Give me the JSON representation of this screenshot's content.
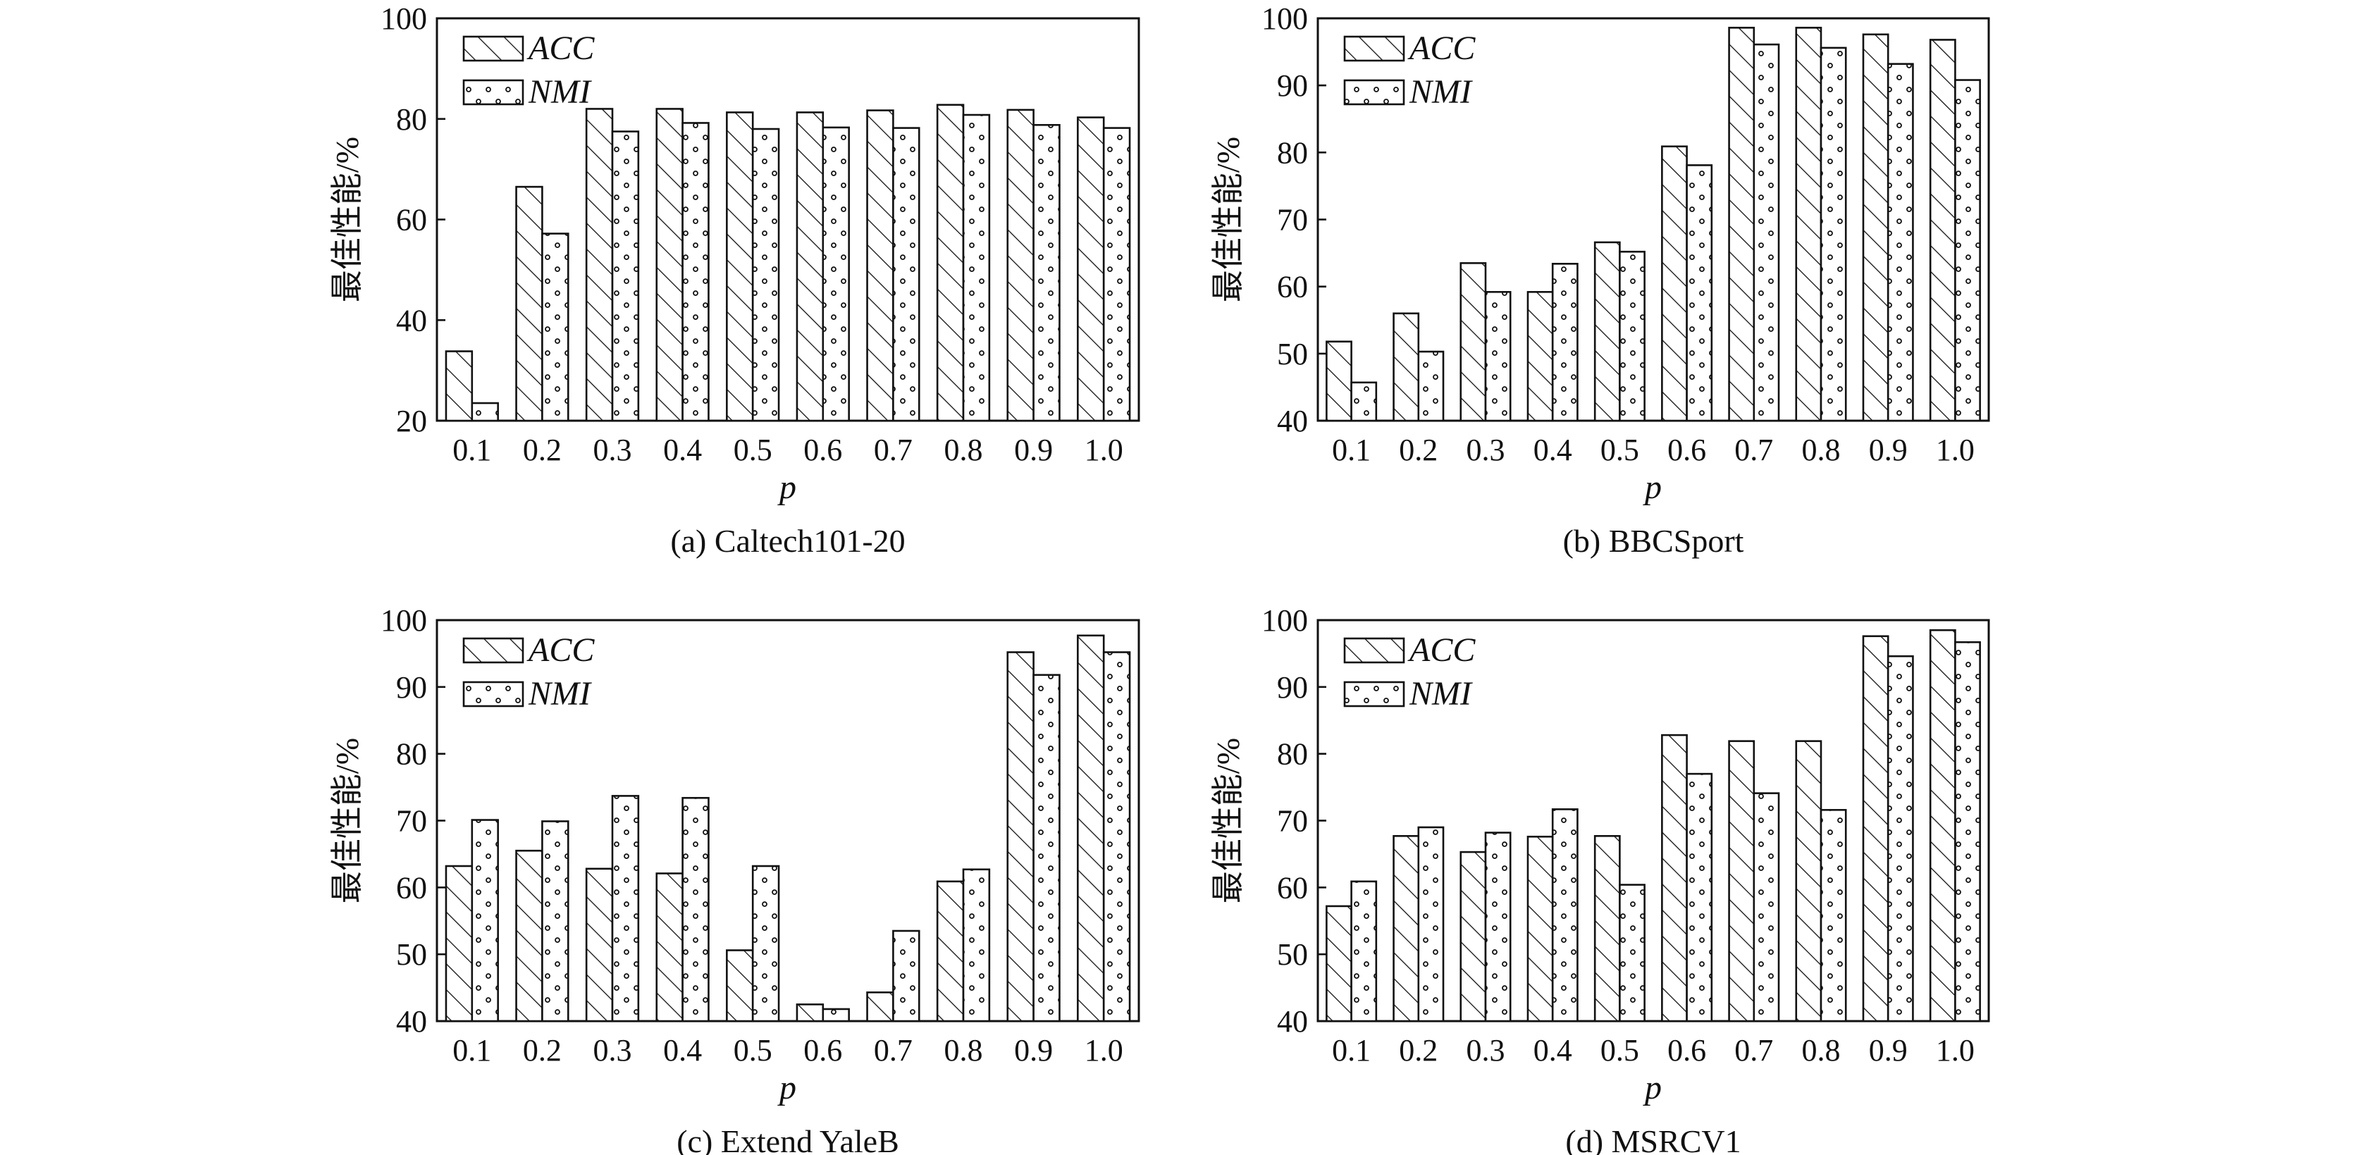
{
  "chart_data": [
    {
      "type": "bar",
      "caption": "(a)  Caltech101-20",
      "categories": [
        "0.1",
        "0.2",
        "0.3",
        "0.4",
        "0.5",
        "0.6",
        "0.7",
        "0.8",
        "0.9",
        "1.0"
      ],
      "series": [
        {
          "name": "ACC",
          "values": [
            33.8,
            66.5,
            82.0,
            82.0,
            81.3,
            81.3,
            81.7,
            82.8,
            81.8,
            80.3
          ]
        },
        {
          "name": "NMI",
          "values": [
            23.5,
            57.2,
            77.5,
            79.2,
            78.0,
            78.3,
            78.2,
            80.8,
            78.8,
            78.2
          ]
        }
      ],
      "xlabel": "p",
      "ylabel": "最佳性能/%",
      "ylim": [
        20,
        100
      ],
      "yticks": [
        "20",
        "40",
        "60",
        "80",
        "100"
      ]
    },
    {
      "type": "bar",
      "caption": "(b)  BBCSport",
      "categories": [
        "0.1",
        "0.2",
        "0.3",
        "0.4",
        "0.5",
        "0.6",
        "0.7",
        "0.8",
        "0.9",
        "1.0"
      ],
      "series": [
        {
          "name": "ACC",
          "values": [
            51.8,
            56.0,
            63.5,
            59.2,
            66.6,
            80.9,
            98.6,
            98.6,
            97.6,
            96.8
          ]
        },
        {
          "name": "NMI",
          "values": [
            45.7,
            50.3,
            59.2,
            63.4,
            65.2,
            78.1,
            96.1,
            95.6,
            93.2,
            90.8
          ]
        }
      ],
      "xlabel": "p",
      "ylabel": "最佳性能/%",
      "ylim": [
        40,
        100
      ],
      "yticks": [
        "40",
        "50",
        "60",
        "70",
        "80",
        "90",
        "100"
      ]
    },
    {
      "type": "bar",
      "caption": "(c)  Extend YaleB",
      "categories": [
        "0.1",
        "0.2",
        "0.3",
        "0.4",
        "0.5",
        "0.6",
        "0.7",
        "0.8",
        "0.9",
        "1.0"
      ],
      "series": [
        {
          "name": "ACC",
          "values": [
            63.2,
            65.5,
            62.8,
            62.1,
            50.6,
            42.5,
            44.3,
            60.9,
            95.2,
            97.7
          ]
        },
        {
          "name": "NMI",
          "values": [
            70.1,
            69.9,
            73.7,
            73.4,
            63.2,
            41.8,
            53.5,
            62.7,
            91.8,
            95.2
          ]
        }
      ],
      "xlabel": "p",
      "ylabel": "最佳性能/%",
      "ylim": [
        40,
        100
      ],
      "yticks": [
        "40",
        "50",
        "60",
        "70",
        "80",
        "90",
        "100"
      ]
    },
    {
      "type": "bar",
      "caption": "(d)  MSRCV1",
      "categories": [
        "0.1",
        "0.2",
        "0.3",
        "0.4",
        "0.5",
        "0.6",
        "0.7",
        "0.8",
        "0.9",
        "1.0"
      ],
      "series": [
        {
          "name": "ACC",
          "values": [
            57.2,
            67.7,
            65.3,
            67.6,
            67.7,
            82.8,
            81.9,
            81.9,
            97.6,
            98.5
          ]
        },
        {
          "name": "NMI",
          "values": [
            60.9,
            69.0,
            68.2,
            71.7,
            60.4,
            77.0,
            74.1,
            71.6,
            94.6,
            96.7
          ]
        }
      ],
      "xlabel": "p",
      "ylabel": "最佳性能/%",
      "ylim": [
        40,
        100
      ],
      "yticks": [
        "40",
        "50",
        "60",
        "70",
        "80",
        "90",
        "100"
      ]
    }
  ]
}
